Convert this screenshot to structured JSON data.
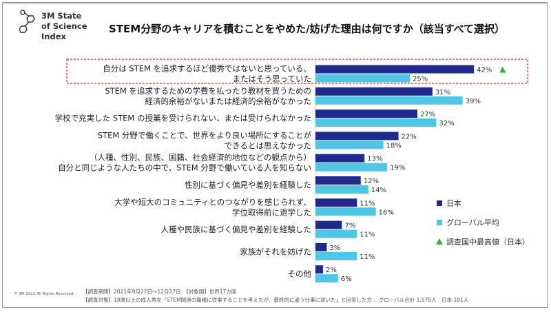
{
  "brand": {
    "line1": "3M State",
    "line2": "of Science",
    "line3": "Index"
  },
  "title": "STEM分野のキャリアを積むことをやめた/妨げた理由は何ですか（該当すべて選択）",
  "chart_data": {
    "type": "bar",
    "orientation": "horizontal",
    "title": "STEM分野のキャリアを積むことをやめた/妨げた理由は何ですか（該当すべて選択）",
    "categories": [
      [
        "自分は STEM を追求するほど優秀ではないと思っている、",
        "またはそう思っていた"
      ],
      [
        "STEM を追求するための学費を払ったり教材を買うための",
        "経済的余裕がないまたは経済的余裕がなかった"
      ],
      [
        "学校で充実した STEM の授業を受けられない、または受けられなかった"
      ],
      [
        "STEM 分野で働くことで、世界をより良い場所にすることが",
        "できるとは思えなかった"
      ],
      [
        "（人種、性別、民族、国籍、社会経済的地位などの観点から）",
        "自分と同じような人たちの中で、STEM 分野で働いている人を知らない"
      ],
      [
        "性別に基づく偏見や差別を経験した"
      ],
      [
        "大学や短大のコミュニティとのつながりを感じられず、",
        "学位取得前に退学した"
      ],
      [
        "人種や民族に基づく偏見や差別を経験した"
      ],
      [
        "家族がそれを妨げた"
      ],
      [
        "その他"
      ]
    ],
    "series": [
      {
        "name": "日本",
        "color": "#1f2a8c",
        "values": [
          42,
          31,
          27,
          22,
          13,
          12,
          11,
          7,
          3,
          2
        ]
      },
      {
        "name": "グローバル平均",
        "color": "#4fc6e6",
        "values": [
          25,
          39,
          32,
          18,
          19,
          14,
          16,
          11,
          11,
          6
        ]
      }
    ],
    "unit": "%",
    "highlight": {
      "category_index": 0,
      "marker": "triangle",
      "color": "#3aa845",
      "legend": "調査国中最高値（日本）"
    },
    "legend_position": "right",
    "grid": false
  },
  "footer": {
    "copyright": "© 3M  2022    All Rights Reserved.",
    "line1": "【調査期間】2021年9月27日～12月17日　【対象国】世界17カ国",
    "line2": "【調査対象】18歳以上の成人男女「STEM関連の職種に従事することを考えたが、最終的に違う仕事に就いた」と回答した方 、グローバル合計 1,575人　日本 101人"
  }
}
